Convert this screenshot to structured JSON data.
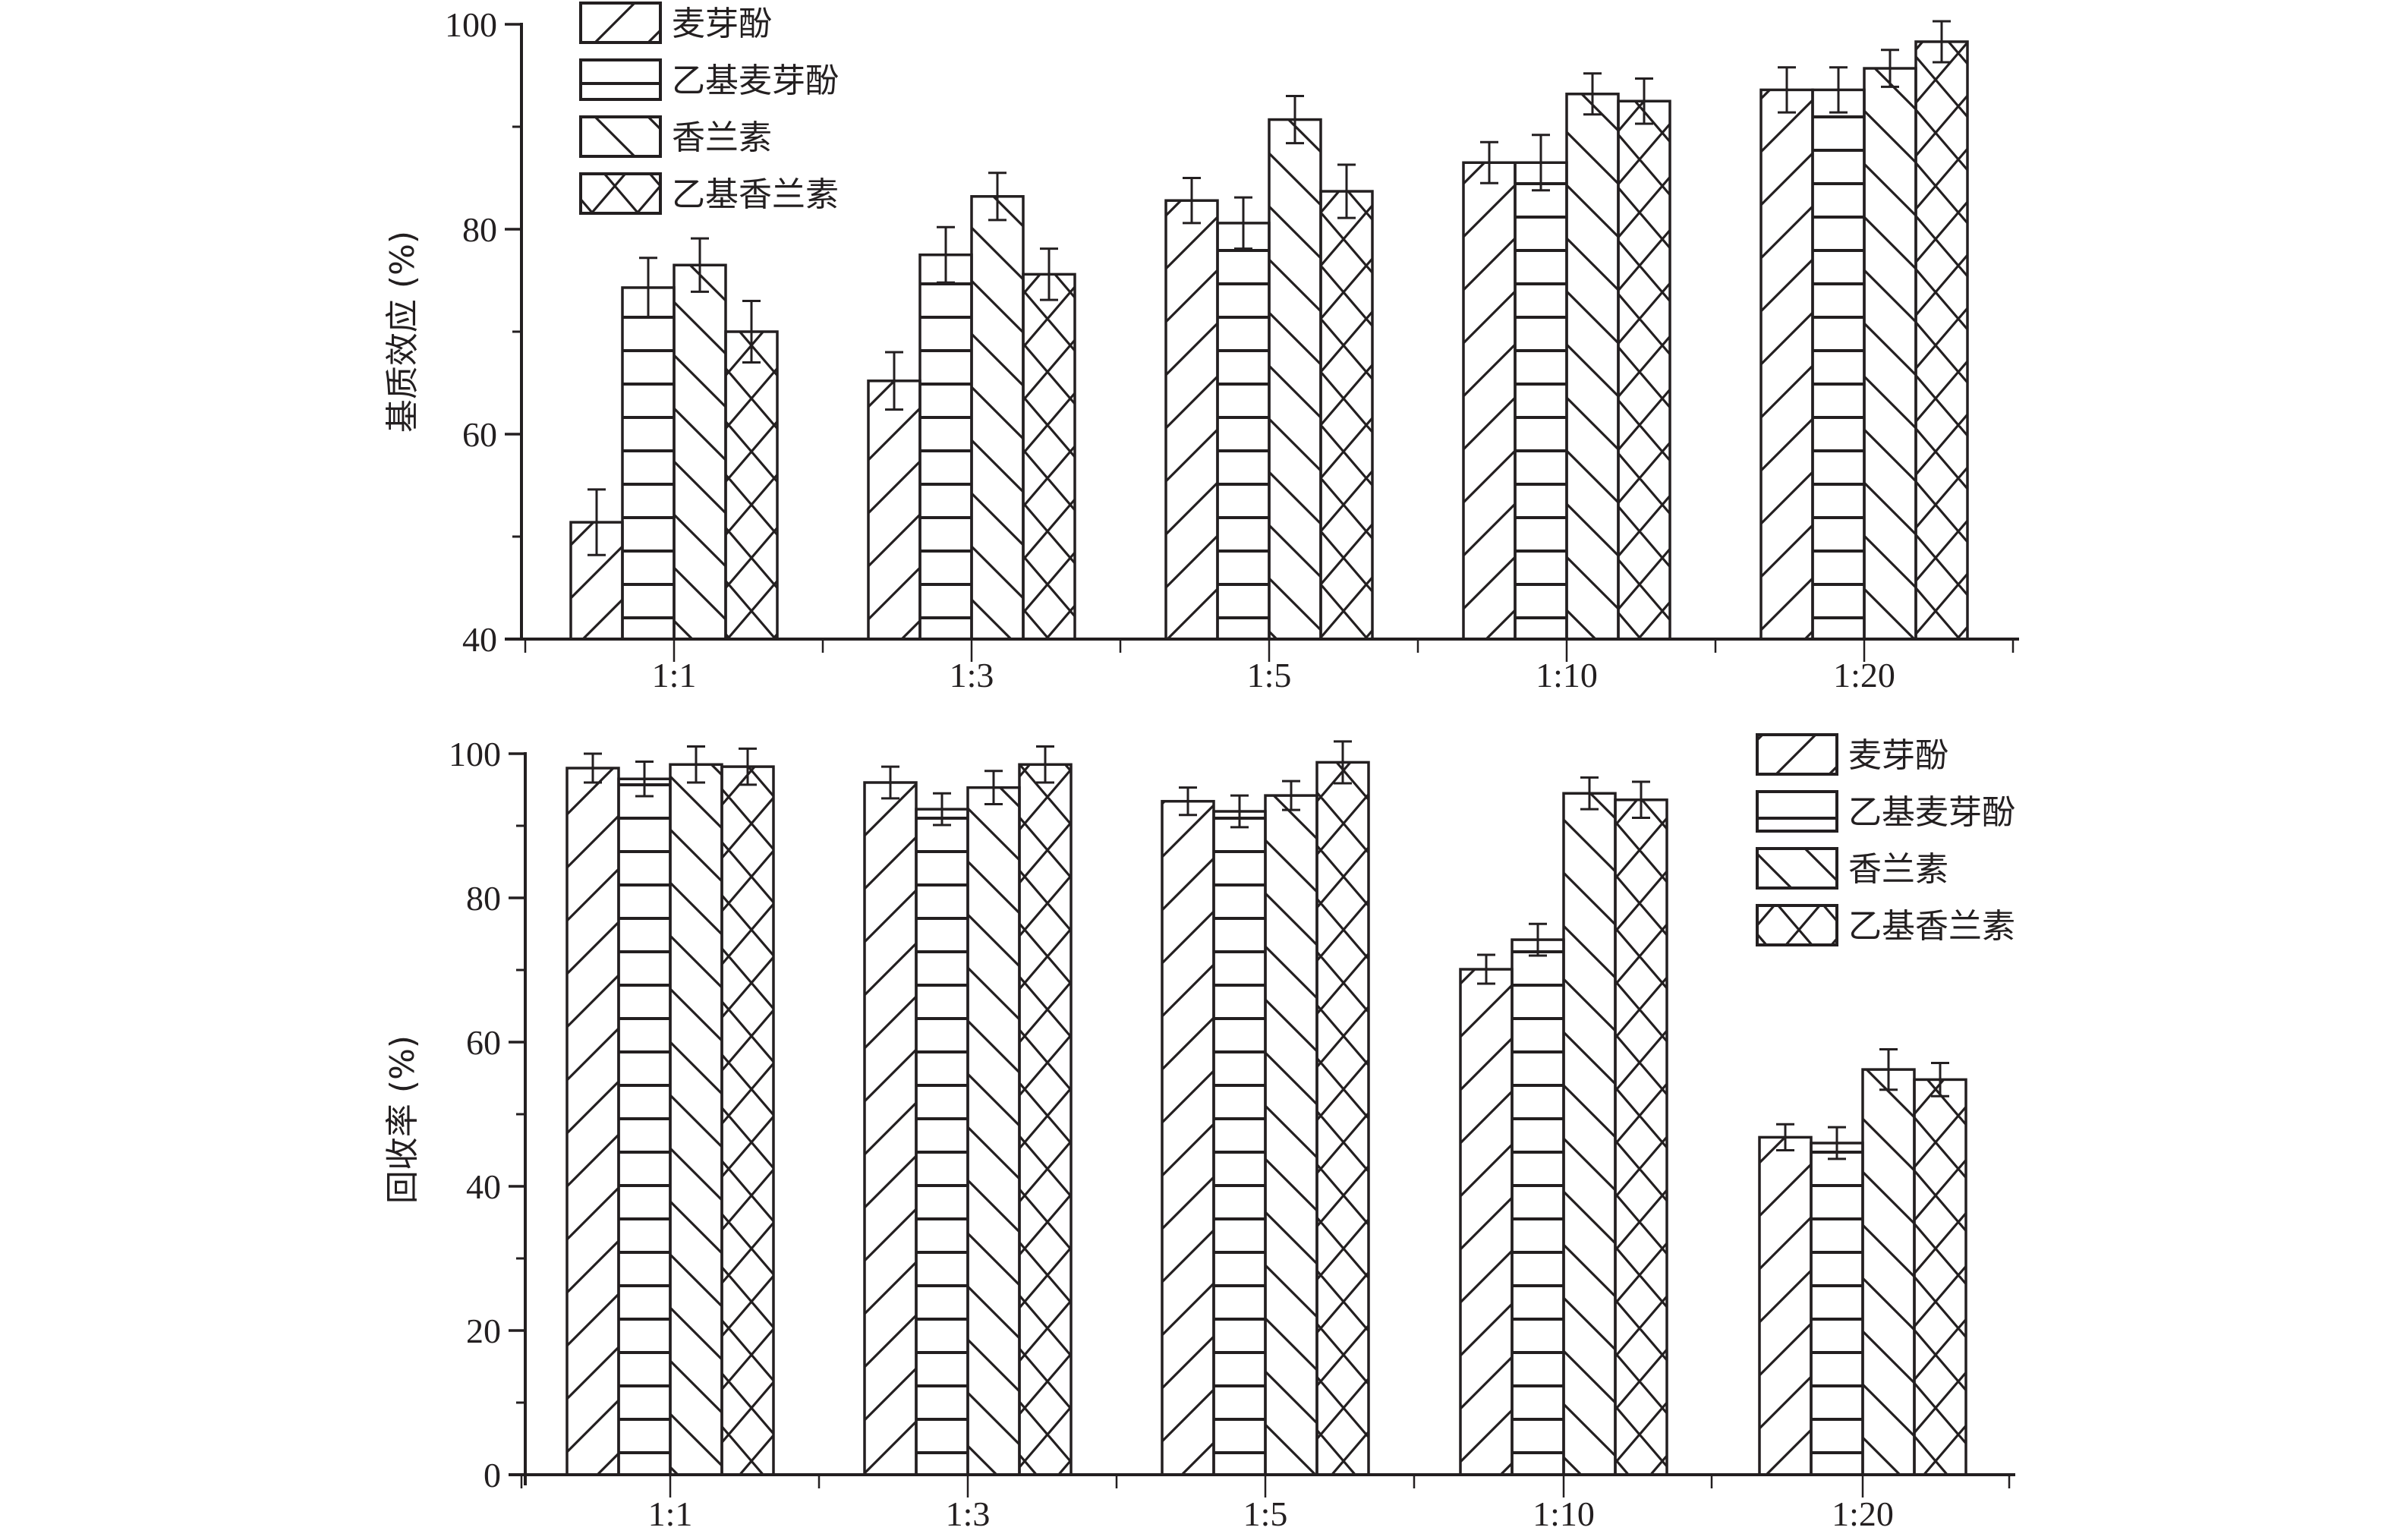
{
  "chart_data": [
    {
      "type": "bar",
      "title": "",
      "xlabel": "",
      "ylabel": "基质效应 (%)",
      "ylim": [
        40,
        100
      ],
      "yticks": [
        40,
        60,
        80,
        100
      ],
      "ytick_labels": [
        "40",
        "60",
        "80",
        "100"
      ],
      "grid": false,
      "legend_position": "top-left",
      "categories": [
        "1:1",
        "1:3",
        "1:5",
        "1:10",
        "1:20"
      ],
      "series": [
        {
          "name": "麦芽酚",
          "pattern": "forward-diagonal",
          "values": [
            51.4,
            65.2,
            82.8,
            86.5,
            93.6
          ],
          "errors": [
            3.2,
            2.8,
            2.2,
            2.0,
            2.2
          ]
        },
        {
          "name": "乙基麦芽酚",
          "pattern": "horizontal",
          "values": [
            74.3,
            77.5,
            80.6,
            86.5,
            93.6
          ],
          "errors": [
            2.9,
            2.7,
            2.5,
            2.7,
            2.2
          ]
        },
        {
          "name": "香兰素",
          "pattern": "back-diagonal",
          "values": [
            76.5,
            83.2,
            90.7,
            93.2,
            95.7
          ],
          "errors": [
            2.6,
            2.3,
            2.3,
            2.0,
            1.8
          ]
        },
        {
          "name": "乙基香兰素",
          "pattern": "crosshatch",
          "values": [
            70.0,
            75.6,
            83.7,
            92.5,
            98.3
          ],
          "errors": [
            3.0,
            2.5,
            2.6,
            2.2,
            2.0
          ]
        }
      ]
    },
    {
      "type": "bar",
      "title": "",
      "xlabel": "",
      "ylabel": "回收率 (%)",
      "ylim": [
        0,
        100
      ],
      "yticks": [
        0,
        20,
        40,
        60,
        80,
        100
      ],
      "ytick_labels": [
        "0",
        "20",
        "40",
        "60",
        "80",
        "100"
      ],
      "grid": false,
      "legend_position": "top-right",
      "categories": [
        "1:1",
        "1:3",
        "1:5",
        "1:10",
        "1:20"
      ],
      "series": [
        {
          "name": "麦芽酚",
          "pattern": "forward-diagonal",
          "values": [
            98.0,
            96.0,
            93.4,
            70.1,
            46.8
          ],
          "errors": [
            2.0,
            2.2,
            1.9,
            2.0,
            1.8
          ]
        },
        {
          "name": "乙基麦芽酚",
          "pattern": "horizontal",
          "values": [
            96.5,
            92.3,
            92.0,
            74.2,
            46.0
          ],
          "errors": [
            2.4,
            2.2,
            2.2,
            2.2,
            2.2
          ]
        },
        {
          "name": "香兰素",
          "pattern": "back-diagonal",
          "values": [
            98.5,
            95.3,
            94.2,
            94.5,
            56.2
          ],
          "errors": [
            2.5,
            2.3,
            2.0,
            2.2,
            2.8
          ]
        },
        {
          "name": "乙基香兰素",
          "pattern": "crosshatch",
          "values": [
            98.2,
            98.5,
            98.8,
            93.6,
            54.8
          ],
          "errors": [
            2.5,
            2.5,
            2.9,
            2.5,
            2.3
          ]
        }
      ]
    }
  ],
  "colors": {
    "ink": "#231f20",
    "background": "#ffffff"
  }
}
